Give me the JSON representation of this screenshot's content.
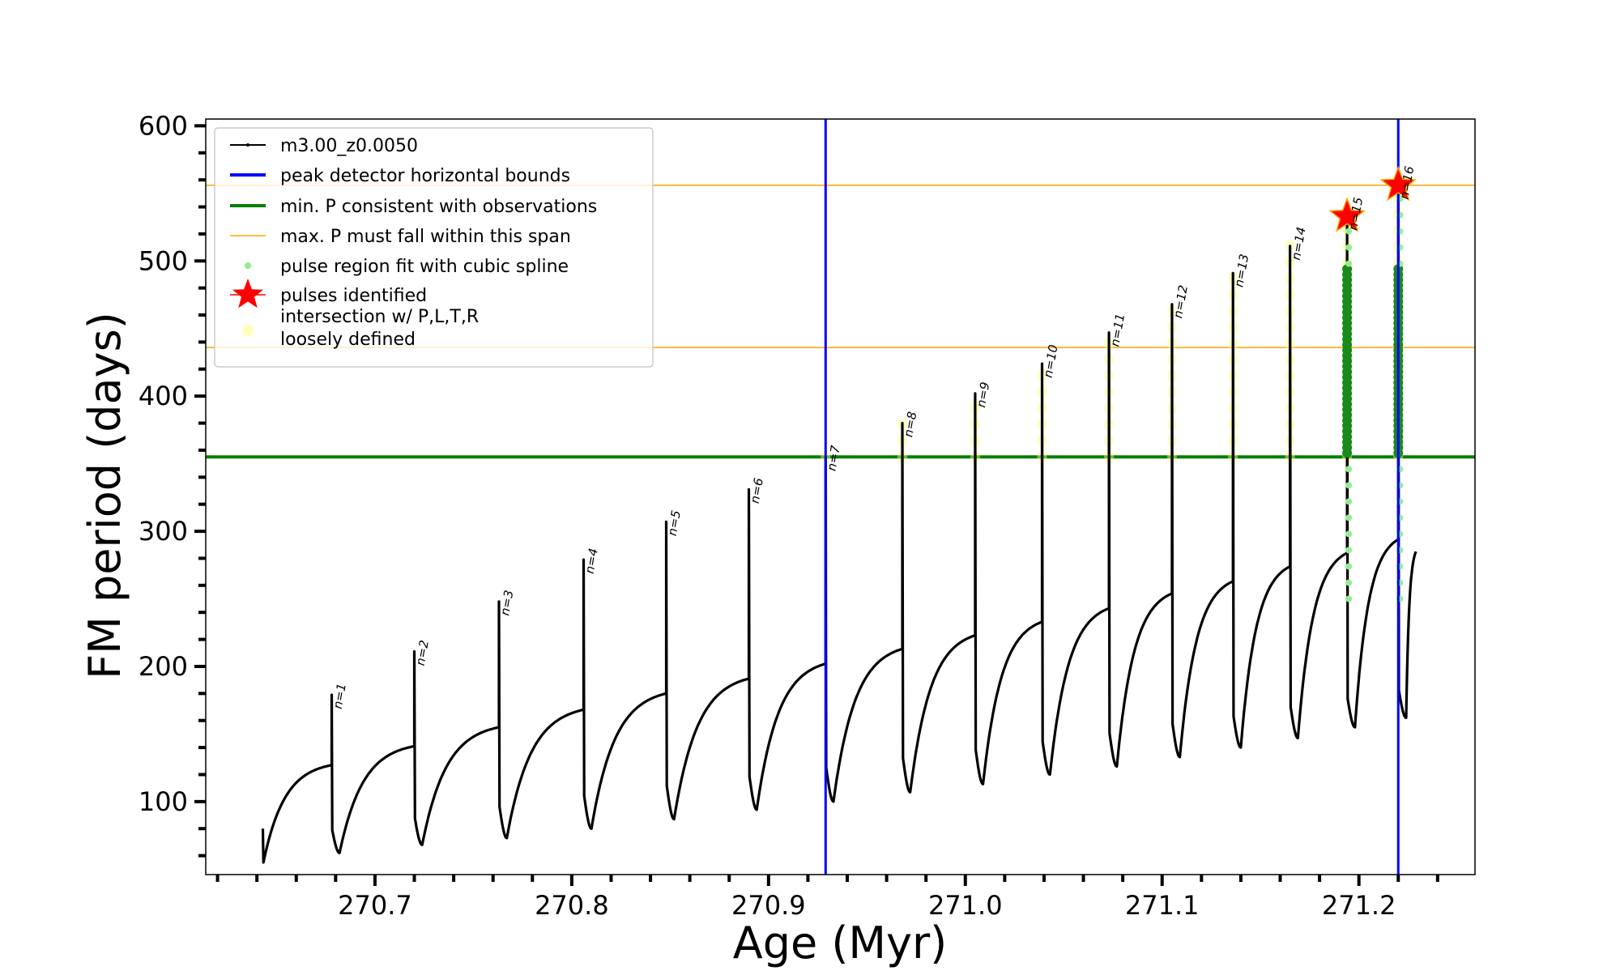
{
  "chart_data": {
    "type": "line",
    "title": "",
    "xlabel": "Age (Myr)",
    "ylabel": "FM period (days)",
    "xlim": [
      270.614,
      271.259
    ],
    "ylim": [
      46,
      605
    ],
    "xticks": [
      "270.7",
      "270.8",
      "270.9",
      "271.0",
      "271.1",
      "271.2"
    ],
    "xtick_values": [
      270.7,
      270.8,
      270.9,
      271.0,
      271.1,
      271.2
    ],
    "yticks": [
      "100",
      "200",
      "300",
      "400",
      "500",
      "600"
    ],
    "ytick_values": [
      100,
      200,
      300,
      400,
      500,
      600
    ],
    "grid": false,
    "legend_position": "top-left",
    "legend": [
      {
        "label": "m3.00_z0.0050",
        "kind": "line-dot",
        "color": "#000000"
      },
      {
        "label": "peak detector horizontal bounds",
        "kind": "line",
        "color": "#0000ff"
      },
      {
        "label": "min. P consistent with observations",
        "kind": "line",
        "color": "#008000"
      },
      {
        "label": "max. P must fall within this span",
        "kind": "thin-line",
        "color": "#ffa500"
      },
      {
        "label": "pulse region fit with cubic spline",
        "kind": "dot",
        "color": "#90ee90"
      },
      {
        "label": "pulses identified",
        "kind": "star",
        "color": "#ff0000"
      },
      {
        "label": "intersection w/ P,L,T,R",
        "label2": "loosely defined",
        "kind": "big-dot",
        "color": "#ffffc0"
      }
    ],
    "series_start": {
      "age": 270.643,
      "values": [
        80,
        55
      ]
    },
    "series_end": {
      "age": 271.229,
      "value": 285
    },
    "pulses": [
      {
        "label": "n=1",
        "age": 270.678,
        "peak": 179,
        "plateau": 127,
        "min": 62
      },
      {
        "label": "n=2",
        "age": 270.72,
        "peak": 211,
        "plateau": 141,
        "min": 68
      },
      {
        "label": "n=3",
        "age": 270.763,
        "peak": 248,
        "plateau": 155,
        "min": 73
      },
      {
        "label": "n=4",
        "age": 270.806,
        "peak": 279,
        "plateau": 168,
        "min": 80
      },
      {
        "label": "n=5",
        "age": 270.848,
        "peak": 307,
        "plateau": 180,
        "min": 87
      },
      {
        "label": "n=6",
        "age": 270.89,
        "peak": 331,
        "plateau": 191,
        "min": 94
      },
      {
        "label": "n=7",
        "age": 270.929,
        "peak": 355,
        "plateau": 202,
        "min": 100
      },
      {
        "label": "n=8",
        "age": 270.968,
        "peak": 380,
        "plateau": 213,
        "min": 107
      },
      {
        "label": "n=9",
        "age": 271.005,
        "peak": 402,
        "plateau": 223,
        "min": 113
      },
      {
        "label": "n=10",
        "age": 271.039,
        "peak": 424,
        "plateau": 233,
        "min": 120
      },
      {
        "label": "n=11",
        "age": 271.073,
        "peak": 447,
        "plateau": 243,
        "min": 126
      },
      {
        "label": "n=12",
        "age": 271.105,
        "peak": 468,
        "plateau": 254,
        "min": 133
      },
      {
        "label": "n=13",
        "age": 271.136,
        "peak": 491,
        "plateau": 263,
        "min": 140
      },
      {
        "label": "n=14",
        "age": 271.165,
        "peak": 511,
        "plateau": 274,
        "min": 147
      },
      {
        "label": "n=15",
        "age": 271.194,
        "peak": 533,
        "plateau": 284,
        "min": 155,
        "identified": true
      },
      {
        "label": "n=16",
        "age": 271.22,
        "peak": 556,
        "plateau": 294,
        "min": 162,
        "identified": true
      }
    ],
    "hlines": [
      {
        "name": "min-period-line",
        "value": 355,
        "color": "#008000",
        "width": 4
      },
      {
        "name": "max-period-lower-line",
        "value": 436,
        "color": "#ffa500",
        "width": 1.5
      },
      {
        "name": "max-period-upper-line",
        "value": 556,
        "color": "#ffa500",
        "width": 1.5
      }
    ],
    "vlines": [
      {
        "name": "peak-detector-left-bound",
        "value": 270.929,
        "color": "#0000ff"
      },
      {
        "name": "peak-detector-right-bound",
        "value": 271.22,
        "color": "#0000ff"
      }
    ],
    "spline_region_min": 250
  }
}
